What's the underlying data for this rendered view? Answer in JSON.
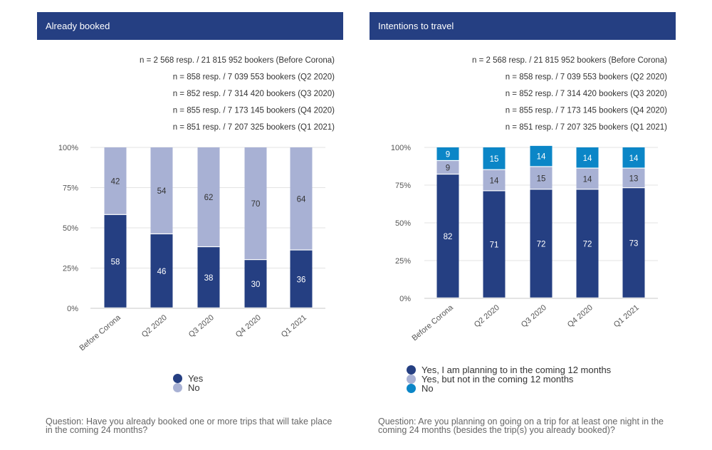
{
  "colors": {
    "header": "#253f82",
    "yes": "#253f82",
    "no": "#a8b1d4",
    "not_coming": "#a8b1d4",
    "intend_no": "#0b86c7",
    "grid": "#e3e3e3"
  },
  "panels": [
    {
      "title": "Already booked",
      "question": "Question: Have you already booked one or more trips that will take place in the coming 24 months?",
      "sample_notes": [
        "n = 2 568 resp. / 21 815 952 bookers (Before Corona)",
        "n = 858 resp. / 7 039 553 bookers (Q2 2020)",
        "n = 852 resp. / 7 314 420 bookers (Q3 2020)",
        "n = 855 resp. / 7 173 145 bookers (Q4 2020)",
        "n = 851 resp. / 7 207 325 bookers (Q1 2021)"
      ],
      "legend": [
        {
          "label": "Yes",
          "color": "#253f82"
        },
        {
          "label": "No",
          "color": "#a8b1d4"
        }
      ]
    },
    {
      "title": "Intentions to travel",
      "question": "Question: Are you planning on going on a trip for at least one night in the coming 24 months (besides the trip(s) you already booked)?",
      "sample_notes": [
        "n = 2 568 resp. / 21 815 952 bookers (Before Corona)",
        "n = 858 resp. / 7 039 553 bookers (Q2 2020)",
        "n = 852 resp. / 7 314 420 bookers (Q3 2020)",
        "n = 855 resp. / 7 173 145 bookers (Q4 2020)",
        "n = 851 resp. / 7 207 325 bookers (Q1 2021)"
      ],
      "legend": [
        {
          "label": "Yes, I am planning to in the coming 12 months",
          "color": "#253f82"
        },
        {
          "label": "Yes, but not in the coming 12 months",
          "color": "#a8b1d4"
        },
        {
          "label": "No",
          "color": "#0b86c7"
        }
      ]
    }
  ],
  "chart_data": [
    {
      "type": "bar",
      "stacked": true,
      "title": "Already booked",
      "categories": [
        "Before Corona",
        "Q2 2020",
        "Q3 2020",
        "Q4 2020",
        "Q1 2021"
      ],
      "yticks": [
        "0%",
        "25%",
        "50%",
        "75%",
        "100%"
      ],
      "ylim": [
        0,
        100
      ],
      "grid": true,
      "legend_position": "bottom",
      "series": [
        {
          "name": "Yes",
          "color": "#253f82",
          "label_color": "#ffffff",
          "values": [
            58,
            46,
            38,
            30,
            36
          ]
        },
        {
          "name": "No",
          "color": "#a8b1d4",
          "label_color": "#333333",
          "values": [
            42,
            54,
            62,
            70,
            64
          ]
        }
      ]
    },
    {
      "type": "bar",
      "stacked": true,
      "title": "Intentions to travel",
      "categories": [
        "Before Corona",
        "Q2 2020",
        "Q3 2020",
        "Q4 2020",
        "Q1 2021"
      ],
      "yticks": [
        "0%",
        "25%",
        "50%",
        "75%",
        "100%"
      ],
      "ylim": [
        0,
        100
      ],
      "grid": true,
      "legend_position": "bottom",
      "series": [
        {
          "name": "Yes, I am planning to in the coming 12 months",
          "color": "#253f82",
          "label_color": "#ffffff",
          "values": [
            82,
            71,
            72,
            72,
            73
          ]
        },
        {
          "name": "Yes, but not in the coming 12 months",
          "color": "#a8b1d4",
          "label_color": "#333333",
          "values": [
            9,
            14,
            15,
            14,
            13
          ]
        },
        {
          "name": "No",
          "color": "#0b86c7",
          "label_color": "#ffffff",
          "values": [
            9,
            15,
            14,
            14,
            14
          ]
        }
      ]
    }
  ]
}
